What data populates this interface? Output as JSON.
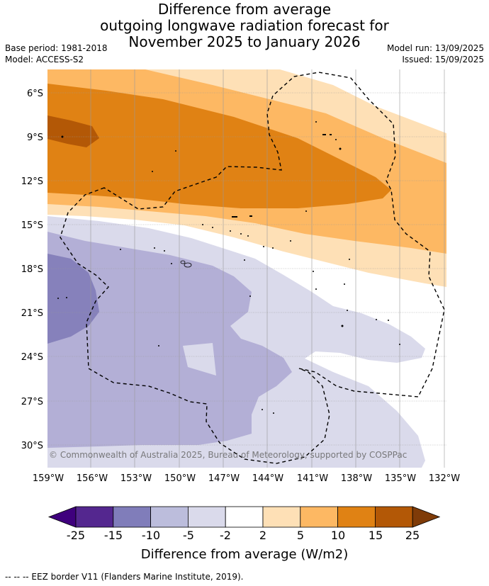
{
  "title": {
    "line1": "Difference from average",
    "line2": "outgoing longwave radiation forecast for",
    "line3": "November 2025 to January 2026"
  },
  "meta": {
    "base_period": "Base period: 1981-2018",
    "model": "Model: ACCESS-S2",
    "model_run": "Model run: 13/09/2025",
    "issued": "Issued: 15/09/2025"
  },
  "map": {
    "lat_labels": [
      "6°S",
      "9°S",
      "12°S",
      "15°S",
      "18°S",
      "21°S",
      "24°S",
      "27°S",
      "30°S"
    ],
    "lon_labels": [
      "159°W",
      "156°W",
      "153°W",
      "150°W",
      "147°W",
      "144°W",
      "141°W",
      "138°W",
      "135°W",
      "132°W"
    ],
    "copyright": "© Commonwealth of Australia 2025, Bureau of Meteorology, supported by COSPPac"
  },
  "colorbar": {
    "ticks": [
      "-25",
      "-15",
      "-10",
      "-5",
      "-2",
      "2",
      "5",
      "10",
      "15",
      "25"
    ],
    "colors": [
      "#3f007d",
      "#54278f",
      "#807dba",
      "#bcbddc",
      "#dadaeb",
      "#ffffff",
      "#fee0b6",
      "#fdb863",
      "#e08214",
      "#b35806",
      "#7f3b08"
    ],
    "label": "Difference from average (W/m2)"
  },
  "footer": "-- -- -- EEZ border V11 (Flanders Marine Institute, 2019)."
}
